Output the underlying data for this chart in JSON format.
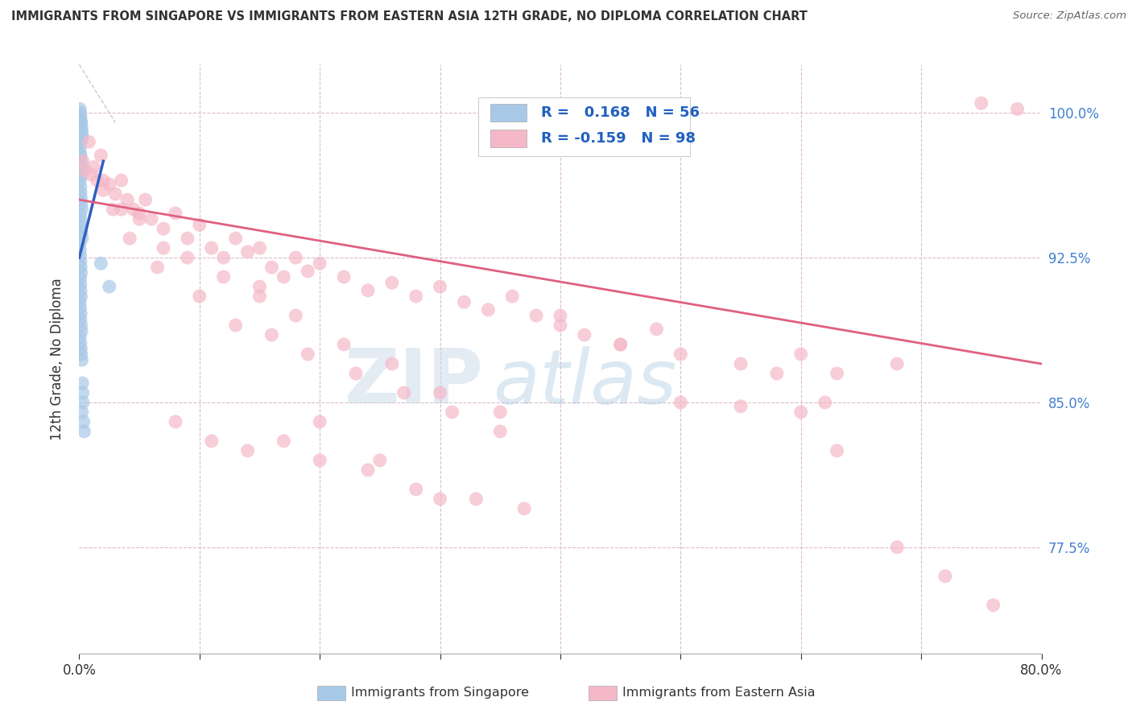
{
  "title": "IMMIGRANTS FROM SINGAPORE VS IMMIGRANTS FROM EASTERN ASIA 12TH GRADE, NO DIPLOMA CORRELATION CHART",
  "source": "Source: ZipAtlas.com",
  "ylabel": "12th Grade, No Diploma",
  "legend_label_blue": "Immigrants from Singapore",
  "legend_label_pink": "Immigrants from Eastern Asia",
  "R_blue": 0.168,
  "N_blue": 56,
  "R_pink": -0.159,
  "N_pink": 98,
  "xlim": [
    0.0,
    80.0
  ],
  "ylim": [
    72.0,
    102.5
  ],
  "ytick_positions": [
    77.5,
    85.0,
    92.5,
    100.0
  ],
  "ytick_labels": [
    "77.5%",
    "85.0%",
    "92.5%",
    "100.0%"
  ],
  "color_blue": "#a8c8e8",
  "color_pink": "#f5b8c8",
  "trendline_blue": "#3060c0",
  "trendline_pink": "#e06080",
  "watermark_zip": "ZIP",
  "watermark_atlas": "atlas",
  "blue_x": [
    0.05,
    0.08,
    0.1,
    0.12,
    0.15,
    0.18,
    0.2,
    0.22,
    0.25,
    0.1,
    0.05,
    0.08,
    0.12,
    0.15,
    0.18,
    0.2,
    0.06,
    0.09,
    0.11,
    0.14,
    0.17,
    0.21,
    0.07,
    0.13,
    0.16,
    0.19,
    0.23,
    0.04,
    0.06,
    0.08,
    0.1,
    0.12,
    0.15,
    0.07,
    0.09,
    0.11,
    0.14,
    0.05,
    0.08,
    0.12,
    0.1,
    0.15,
    0.18,
    0.06,
    0.09,
    0.13,
    0.16,
    0.2,
    1.8,
    2.5,
    0.25,
    0.28,
    0.3,
    0.22,
    0.35,
    0.4
  ],
  "blue_y": [
    100.2,
    100.0,
    99.8,
    99.6,
    99.5,
    99.3,
    99.1,
    98.9,
    98.7,
    98.5,
    98.2,
    97.9,
    97.7,
    97.4,
    97.1,
    96.8,
    96.5,
    96.2,
    95.9,
    95.6,
    95.3,
    95.0,
    94.7,
    94.4,
    94.1,
    93.8,
    93.5,
    93.2,
    92.9,
    92.6,
    92.3,
    92.0,
    91.7,
    91.4,
    91.1,
    90.8,
    90.5,
    90.2,
    89.9,
    89.6,
    89.3,
    89.0,
    88.7,
    88.4,
    88.1,
    87.8,
    87.5,
    87.2,
    92.2,
    91.0,
    86.0,
    85.5,
    85.0,
    84.5,
    84.0,
    83.5
  ],
  "pink_x": [
    0.3,
    0.5,
    0.8,
    1.0,
    1.2,
    1.5,
    1.8,
    2.0,
    2.5,
    3.0,
    3.5,
    4.0,
    4.5,
    5.0,
    5.5,
    6.0,
    7.0,
    8.0,
    9.0,
    10.0,
    11.0,
    12.0,
    13.0,
    14.0,
    15.0,
    16.0,
    17.0,
    18.0,
    19.0,
    20.0,
    22.0,
    24.0,
    26.0,
    28.0,
    30.0,
    32.0,
    34.0,
    36.0,
    38.0,
    40.0,
    42.0,
    45.0,
    48.0,
    50.0,
    55.0,
    60.0,
    63.0,
    68.0,
    75.0,
    78.0,
    2.0,
    3.5,
    5.0,
    7.0,
    9.0,
    12.0,
    15.0,
    18.0,
    22.0,
    26.0,
    30.0,
    35.0,
    8.0,
    11.0,
    14.0,
    17.0,
    20.0,
    24.0,
    28.0,
    33.0,
    37.0,
    2.8,
    4.2,
    6.5,
    10.0,
    13.0,
    16.0,
    19.0,
    23.0,
    27.0,
    31.0,
    35.0,
    20.0,
    25.0,
    30.0,
    15.0,
    40.0,
    45.0,
    50.0,
    55.0,
    60.0,
    63.0,
    68.0,
    72.0,
    76.0,
    58.0,
    62.0
  ],
  "pink_y": [
    97.5,
    97.0,
    98.5,
    96.8,
    97.2,
    96.5,
    97.8,
    96.0,
    96.3,
    95.8,
    96.5,
    95.5,
    95.0,
    94.8,
    95.5,
    94.5,
    94.0,
    94.8,
    93.5,
    94.2,
    93.0,
    92.5,
    93.5,
    92.8,
    93.0,
    92.0,
    91.5,
    92.5,
    91.8,
    92.2,
    91.5,
    90.8,
    91.2,
    90.5,
    91.0,
    90.2,
    89.8,
    90.5,
    89.5,
    89.0,
    88.5,
    88.0,
    88.8,
    87.5,
    87.0,
    87.5,
    86.5,
    87.0,
    100.5,
    100.2,
    96.5,
    95.0,
    94.5,
    93.0,
    92.5,
    91.5,
    90.5,
    89.5,
    88.0,
    87.0,
    85.5,
    84.5,
    84.0,
    83.0,
    82.5,
    83.0,
    82.0,
    81.5,
    80.5,
    80.0,
    79.5,
    95.0,
    93.5,
    92.0,
    90.5,
    89.0,
    88.5,
    87.5,
    86.5,
    85.5,
    84.5,
    83.5,
    84.0,
    82.0,
    80.0,
    91.0,
    89.5,
    88.0,
    85.0,
    84.8,
    84.5,
    82.5,
    77.5,
    76.0,
    74.5,
    86.5,
    85.0
  ],
  "pink_trend_x0": 0.0,
  "pink_trend_y0": 95.5,
  "pink_trend_x1": 80.0,
  "pink_trend_y1": 87.0,
  "blue_trend_x0": 0.0,
  "blue_trend_y0": 92.5,
  "blue_trend_x1": 2.0,
  "blue_trend_y1": 97.5,
  "diag_x0": 0.0,
  "diag_y0": 102.5,
  "diag_x1": 3.0,
  "diag_y1": 99.5
}
